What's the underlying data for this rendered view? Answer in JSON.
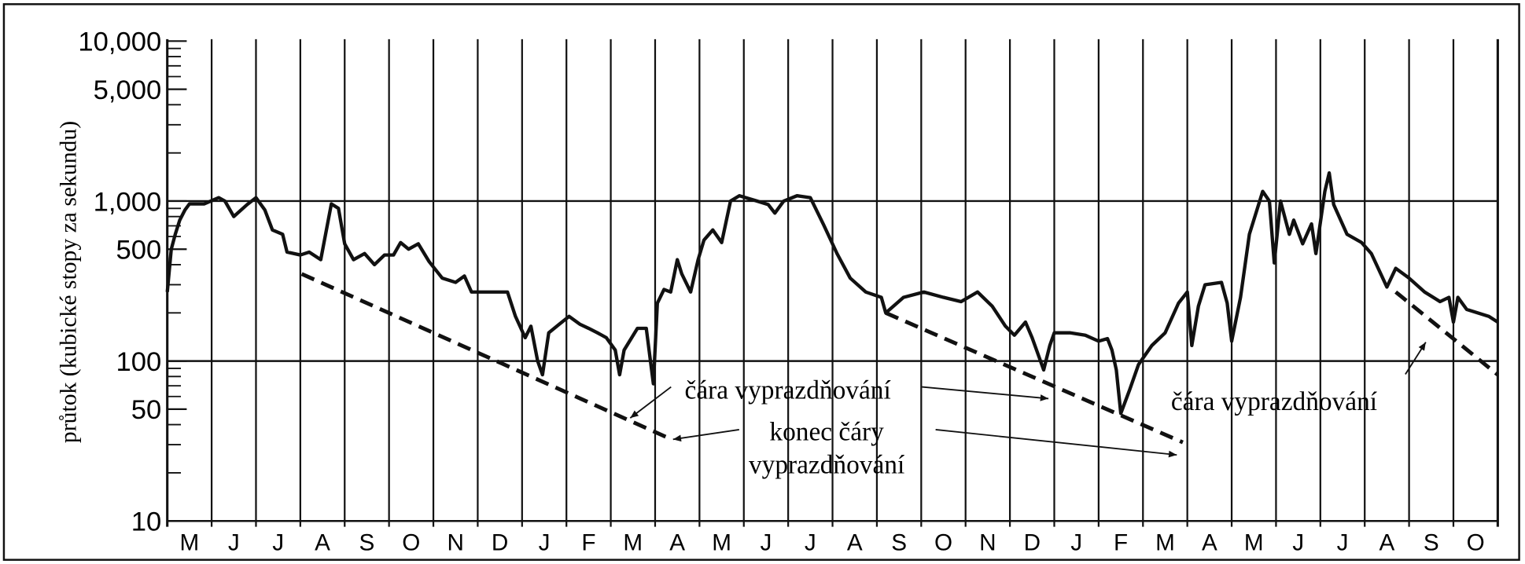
{
  "chart_data": {
    "type": "line",
    "y_label": "průtok (kubické stopy za sekundu)",
    "log_y": true,
    "categories": [
      "M",
      "J",
      "J",
      "A",
      "S",
      "O",
      "N",
      "D",
      "J",
      "F",
      "M",
      "A",
      "M",
      "J",
      "J",
      "A",
      "S",
      "O",
      "N",
      "D",
      "J",
      "F",
      "M",
      "A",
      "M",
      "J",
      "J",
      "A",
      "S",
      "O"
    ],
    "xlim": [
      0,
      30
    ],
    "ylim": [
      10,
      10000
    ],
    "yticks": [
      10,
      50,
      100,
      500,
      {
        "value": 1000,
        "label": "1,000"
      },
      {
        "value": 5000,
        "label": "5,000"
      },
      {
        "value": 10000,
        "label": "10,000"
      }
    ],
    "minor_yticks": [
      20,
      30,
      40,
      60,
      70,
      80,
      90,
      200,
      300,
      400,
      600,
      700,
      800,
      900,
      2000,
      3000,
      4000,
      6000,
      7000,
      8000,
      9000
    ],
    "hgrid": [
      100,
      1000
    ],
    "series": [
      {
        "color": "#111111",
        "x": [
          0,
          0.09,
          0.18,
          0.28,
          0.4,
          0.5,
          0.83,
          1.16,
          1.3,
          1.5,
          1.8,
          2.0,
          2.2,
          2.37,
          2.6,
          2.7,
          3.0,
          3.2,
          3.46,
          3.7,
          3.86,
          4.0,
          4.2,
          4.45,
          4.67,
          4.9,
          5.1,
          5.26,
          5.44,
          5.66,
          5.9,
          6.2,
          6.5,
          6.7,
          6.86,
          7.2,
          7.5,
          7.67,
          7.85,
          8.07,
          8.2,
          8.35,
          8.46,
          8.6,
          8.84,
          9.06,
          9.3,
          9.5,
          9.7,
          9.9,
          10.1,
          10.2,
          10.3,
          10.6,
          10.8,
          10.96,
          11.05,
          11.2,
          11.35,
          11.5,
          11.6,
          11.8,
          11.97,
          12.1,
          12.3,
          12.5,
          12.7,
          12.9,
          13.3,
          13.55,
          13.7,
          13.9,
          14.2,
          14.5,
          14.8,
          15.1,
          15.4,
          15.75,
          16.1,
          16.2,
          16.6,
          17.06,
          17.5,
          17.9,
          18.27,
          18.6,
          18.9,
          19.1,
          19.35,
          19.5,
          19.6,
          19.76,
          19.9,
          20.0,
          20.35,
          20.7,
          21.0,
          21.2,
          21.3,
          21.4,
          21.5,
          21.7,
          21.9,
          22.2,
          22.5,
          22.8,
          23.0,
          23.1,
          23.25,
          23.4,
          23.77,
          23.9,
          24.0,
          24.2,
          24.4,
          24.7,
          24.85,
          24.96,
          25.1,
          25.3,
          25.4,
          25.6,
          25.8,
          25.9,
          26.1,
          26.2,
          26.3,
          26.6,
          26.93,
          27.15,
          27.5,
          27.7,
          28.0,
          28.35,
          28.7,
          28.9,
          29.0,
          29.1,
          29.3,
          29.8,
          30.0
        ],
        "values": [
          270,
          500,
          620,
          760,
          880,
          960,
          960,
          1050,
          1000,
          800,
          950,
          1050,
          880,
          660,
          620,
          480,
          460,
          480,
          430,
          960,
          900,
          540,
          430,
          470,
          400,
          460,
          460,
          550,
          500,
          540,
          420,
          330,
          310,
          340,
          270,
          270,
          270,
          270,
          190,
          140,
          165,
          100,
          82,
          150,
          170,
          190,
          170,
          160,
          150,
          140,
          117,
          82,
          117,
          160,
          160,
          72,
          230,
          280,
          270,
          430,
          350,
          270,
          430,
          570,
          660,
          550,
          1000,
          1080,
          1000,
          950,
          840,
          1000,
          1080,
          1050,
          710,
          470,
          330,
          270,
          250,
          200,
          250,
          270,
          250,
          235,
          270,
          220,
          165,
          145,
          175,
          140,
          117,
          88,
          125,
          150,
          150,
          145,
          133,
          138,
          117,
          88,
          47,
          66,
          95,
          125,
          150,
          230,
          270,
          125,
          220,
          300,
          310,
          230,
          133,
          250,
          620,
          1150,
          1000,
          410,
          1000,
          620,
          760,
          540,
          720,
          470,
          1150,
          1500,
          950,
          620,
          550,
          470,
          290,
          380,
          330,
          270,
          235,
          250,
          175,
          250,
          210,
          190,
          175
        ]
      }
    ],
    "recession_lines": [
      {
        "x": [
          3.03,
          11.3
        ],
        "values": [
          350,
          33
        ]
      },
      {
        "x": [
          16.2,
          22.9
        ],
        "values": [
          200,
          31
        ]
      },
      {
        "x": [
          27.7,
          30
        ],
        "values": [
          270,
          82
        ]
      }
    ],
    "annotations": [
      {
        "lines": [
          "čára vyprazdňování"
        ]
      },
      {
        "lines": [
          "konec čáry",
          "vyprazdňování"
        ]
      },
      {
        "lines": [
          "čára vyprazdňování"
        ]
      }
    ]
  }
}
